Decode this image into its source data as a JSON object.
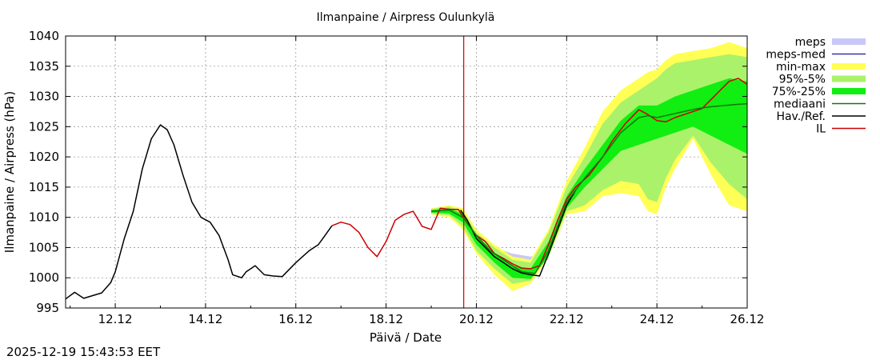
{
  "chart_data": {
    "type": "line",
    "title": "Ilmanpaine / Airpress Oulunkylä",
    "xlabel": "Päivä / Date",
    "ylabel": "Ilmanpaine / Airpress (hPa)",
    "xlim": [
      10.9,
      26.0
    ],
    "ylim": [
      995,
      1040
    ],
    "grid": true,
    "legend_position": "right",
    "xticks": [
      {
        "v": 12,
        "label": "12.12"
      },
      {
        "v": 14,
        "label": "14.12"
      },
      {
        "v": 16,
        "label": "16.12"
      },
      {
        "v": 18,
        "label": "18.12"
      },
      {
        "v": 20,
        "label": "20.12"
      },
      {
        "v": 22,
        "label": "22.12"
      },
      {
        "v": 24,
        "label": "24.12"
      },
      {
        "v": 26,
        "label": "26.12"
      }
    ],
    "yticks": [
      995,
      1000,
      1005,
      1010,
      1015,
      1020,
      1025,
      1030,
      1035,
      1040
    ],
    "now_line": {
      "x": 19.72,
      "color": "#cc0000"
    },
    "legend": [
      {
        "label": "meps",
        "color": "#c8c8f8",
        "style": "band"
      },
      {
        "label": "meps-med",
        "color": "#3333aa",
        "style": "line"
      },
      {
        "label": "min-max",
        "color": "#ffff55",
        "style": "band"
      },
      {
        "label": "95%-5%",
        "color": "#aaf26a",
        "style": "band"
      },
      {
        "label": "75%-25%",
        "color": "#11ee11",
        "style": "band"
      },
      {
        "label": "mediaani",
        "color": "#117711",
        "style": "line"
      },
      {
        "label": "Hav./Ref.",
        "color": "#000000",
        "style": "line"
      },
      {
        "label": "IL",
        "color": "#cc0000",
        "style": "line"
      }
    ],
    "series": [
      {
        "name": "Hav./Ref.",
        "x": [
          10.9,
          11.1,
          11.3,
          11.7,
          11.9,
          12.0,
          12.2,
          12.4,
          12.6,
          12.8,
          13.0,
          13.15,
          13.3,
          13.5,
          13.7,
          13.9,
          14.1,
          14.3,
          14.5,
          14.6,
          14.8,
          14.9,
          15.1,
          15.3,
          15.5,
          15.7,
          16.0,
          16.3,
          16.5,
          16.6,
          16.8
        ],
        "y": [
          996.5,
          997.6,
          996.6,
          997.5,
          999.2,
          1001.0,
          1006.5,
          1011.0,
          1018.0,
          1023.0,
          1025.3,
          1024.5,
          1022.0,
          1017.0,
          1012.5,
          1010.0,
          1009.2,
          1007.0,
          1003.0,
          1000.5,
          1000.0,
          1001.0,
          1002.0,
          1000.5,
          1000.3,
          1000.2,
          1002.5,
          1004.5,
          1005.5,
          1006.5,
          1008.6
        ]
      },
      {
        "name": "IL",
        "x": [
          16.8,
          17.0,
          17.2,
          17.4,
          17.6,
          17.8,
          18.0,
          18.2,
          18.4,
          18.6,
          18.8,
          19.0,
          19.2,
          19.4,
          19.6,
          19.8,
          20.0,
          20.2,
          20.4,
          20.6,
          20.8,
          21.0,
          21.2,
          21.4,
          21.6,
          21.8,
          22.0,
          22.2,
          22.5,
          22.8,
          23.0,
          23.3,
          23.6,
          23.8,
          24.0,
          24.2,
          24.4,
          24.6,
          24.8,
          25.0,
          25.2,
          25.4,
          25.6,
          25.8,
          26.0
        ],
        "y": [
          1008.6,
          1009.2,
          1008.8,
          1007.5,
          1005.0,
          1003.5,
          1006.0,
          1009.5,
          1010.5,
          1011.0,
          1008.5,
          1008.0,
          1011.5,
          1011.3,
          1011.3,
          1009.0,
          1007.0,
          1006.0,
          1004.0,
          1003.2,
          1002.3,
          1001.6,
          1001.5,
          1002.0,
          1005.5,
          1009.5,
          1013.0,
          1015.0,
          1017.0,
          1020.0,
          1022.5,
          1025.5,
          1027.8,
          1027.0,
          1026.0,
          1025.8,
          1026.5,
          1027.0,
          1027.5,
          1028.0,
          1029.5,
          1031.0,
          1032.5,
          1033.0,
          1032.0
        ]
      },
      {
        "name": "Hav./Ref.",
        "x": [
          19.65,
          19.8,
          20.0,
          20.2,
          20.4,
          20.6,
          20.8,
          21.0,
          21.2,
          21.4,
          21.6,
          21.8,
          22.0,
          22.2
        ],
        "y": [
          1011.2,
          1009.5,
          1006.5,
          1005.0,
          1003.5,
          1002.5,
          1001.5,
          1000.8,
          1000.5,
          1000.3,
          1004.0,
          1008.0,
          1012.0,
          1014.5
        ]
      },
      {
        "name": "mediaani",
        "x": [
          19.0,
          19.4,
          19.7,
          20.0,
          20.3,
          20.6,
          21.0,
          21.3,
          21.6,
          22.0,
          22.4,
          22.8,
          23.2,
          23.6,
          23.8,
          24.0,
          24.3,
          24.6,
          24.9,
          25.2,
          25.5,
          25.8,
          26.0
        ],
        "y": [
          1011.0,
          1011.2,
          1010.0,
          1007.0,
          1004.5,
          1003.0,
          1001.0,
          1000.7,
          1004.5,
          1012.5,
          1016.5,
          1020.0,
          1024.0,
          1026.5,
          1026.8,
          1026.5,
          1027.0,
          1027.5,
          1028.0,
          1028.3,
          1028.5,
          1028.7,
          1028.8
        ]
      }
    ],
    "bands": [
      {
        "name": "meps",
        "x": [
          20.0,
          20.4,
          20.8,
          21.2,
          21.6
        ],
        "lower": [
          1006.5,
          1004.0,
          1002.5,
          1002.0,
          1003.0
        ],
        "upper": [
          1007.0,
          1005.0,
          1004.0,
          1003.5,
          1004.0
        ]
      },
      {
        "name": "min-max",
        "x": [
          19.0,
          19.4,
          19.7,
          20.0,
          20.4,
          20.8,
          21.2,
          21.6,
          22.0,
          22.4,
          22.8,
          23.2,
          23.6,
          23.8,
          24.0,
          24.2,
          24.4,
          24.8,
          25.2,
          25.6,
          26.0
        ],
        "lower": [
          1010.5,
          1010.0,
          1008.0,
          1004.0,
          1000.5,
          997.8,
          999.0,
          1003.5,
          1010.5,
          1011.0,
          1013.5,
          1014.0,
          1013.5,
          1011.0,
          1010.5,
          1015.0,
          1018.0,
          1023.0,
          1017.0,
          1012.0,
          1011.0
        ],
        "upper": [
          1011.5,
          1012.0,
          1011.5,
          1008.0,
          1005.5,
          1003.5,
          1003.0,
          1008.0,
          1016.0,
          1021.5,
          1027.5,
          1031.0,
          1033.0,
          1034.0,
          1034.5,
          1036.0,
          1037.0,
          1037.5,
          1038.0,
          1039.0,
          1038.0
        ]
      },
      {
        "name": "95%-5%",
        "x": [
          19.0,
          19.4,
          19.7,
          20.0,
          20.4,
          20.8,
          21.2,
          21.6,
          22.0,
          22.4,
          22.8,
          23.2,
          23.6,
          23.8,
          24.0,
          24.2,
          24.4,
          24.8,
          25.2,
          25.6,
          26.0
        ],
        "lower": [
          1010.6,
          1010.3,
          1008.5,
          1004.5,
          1001.5,
          999.0,
          999.5,
          1004.0,
          1011.0,
          1012.0,
          1014.5,
          1016.0,
          1015.5,
          1013.0,
          1012.5,
          1016.5,
          1019.5,
          1023.5,
          1019.0,
          1015.5,
          1013.0
        ],
        "upper": [
          1011.4,
          1011.8,
          1011.0,
          1007.5,
          1005.0,
          1003.0,
          1002.5,
          1007.5,
          1015.0,
          1020.0,
          1025.5,
          1029.0,
          1031.0,
          1032.0,
          1033.0,
          1034.5,
          1035.5,
          1036.0,
          1036.5,
          1037.0,
          1036.5
        ]
      },
      {
        "name": "75%-25%",
        "x": [
          19.0,
          19.4,
          19.7,
          20.0,
          20.4,
          20.8,
          21.2,
          21.6,
          22.0,
          22.4,
          22.8,
          23.2,
          23.6,
          24.0,
          24.4,
          24.8,
          25.2,
          25.6,
          26.0
        ],
        "lower": [
          1010.8,
          1010.6,
          1009.2,
          1005.5,
          1002.5,
          1000.0,
          999.8,
          1003.5,
          1011.5,
          1015.0,
          1018.0,
          1021.0,
          1022.0,
          1023.0,
          1024.0,
          1025.0,
          1023.5,
          1022.0,
          1020.5
        ],
        "upper": [
          1011.2,
          1011.5,
          1010.5,
          1007.0,
          1004.2,
          1002.0,
          1001.5,
          1006.0,
          1013.5,
          1018.0,
          1022.0,
          1026.0,
          1028.5,
          1028.5,
          1030.0,
          1031.0,
          1032.0,
          1033.0,
          1032.5
        ]
      }
    ]
  },
  "timestamp": "2025-12-19 15:43:53 EET"
}
